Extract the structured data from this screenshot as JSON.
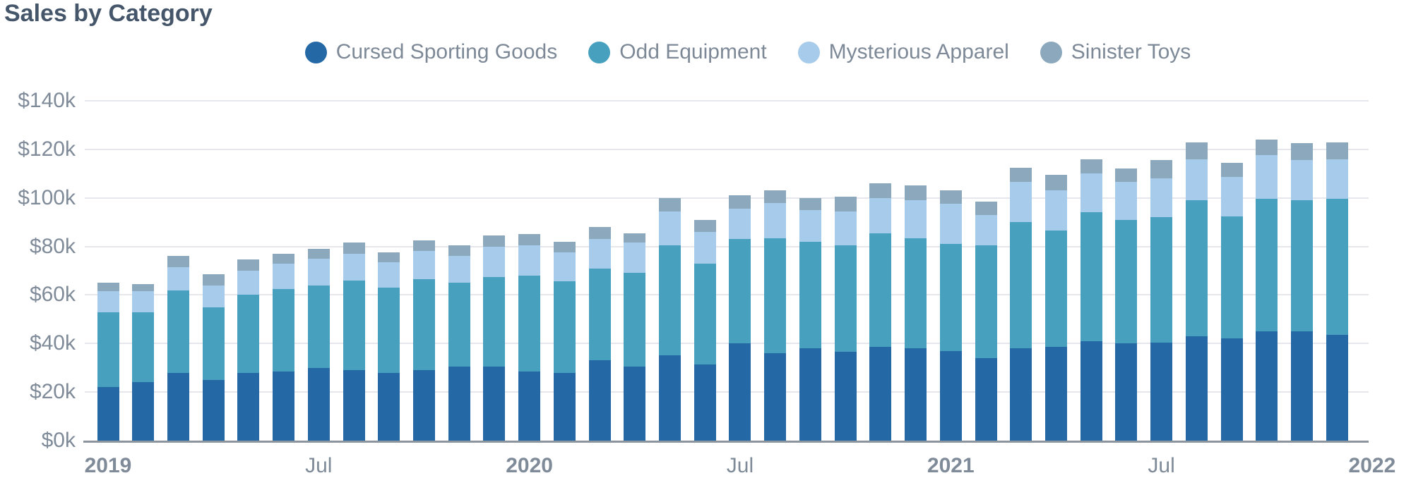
{
  "title": "Sales by Category",
  "colors": {
    "title_text": "#45566A",
    "legend_text": "#7D8997",
    "tick_text": "#7F8B99",
    "gridline": "#E5E7EC",
    "axis_line": "#8C949D",
    "background": "#FFFFFF"
  },
  "chart_data": {
    "type": "bar",
    "stacked": true,
    "title": "Sales by Category",
    "xlabel": "",
    "ylabel": "",
    "units": "USD thousands",
    "ylim": [
      0,
      140
    ],
    "grid": true,
    "legend_position": "top-center",
    "categories": [
      "Jan 2019",
      "Feb 2019",
      "Mar 2019",
      "Apr 2019",
      "May 2019",
      "Jun 2019",
      "Jul 2019",
      "Aug 2019",
      "Sep 2019",
      "Oct 2019",
      "Nov 2019",
      "Dec 2019",
      "Jan 2020",
      "Feb 2020",
      "Mar 2020",
      "Apr 2020",
      "May 2020",
      "Jun 2020",
      "Jul 2020",
      "Aug 2020",
      "Sep 2020",
      "Oct 2020",
      "Nov 2020",
      "Dec 2020",
      "Jan 2021",
      "Feb 2021",
      "Mar 2021",
      "Apr 2021",
      "May 2021",
      "Jun 2021",
      "Jul 2021",
      "Aug 2021",
      "Sep 2021",
      "Oct 2021",
      "Nov 2021",
      "Dec 2021"
    ],
    "series": [
      {
        "name": "Cursed Sporting Goods",
        "color": "#2568A6",
        "values": [
          22,
          24,
          28,
          25,
          28,
          28.5,
          30,
          29,
          28,
          29,
          30.5,
          30.5,
          28.5,
          28,
          33,
          30.5,
          35,
          31.5,
          40,
          36,
          38,
          36.5,
          38.5,
          38,
          37,
          34,
          38,
          38.5,
          41,
          40,
          40.5,
          43,
          42,
          45,
          45,
          43.5
        ]
      },
      {
        "name": "Odd Equipment",
        "color": "#47A1BE",
        "values": [
          31,
          29,
          34,
          30,
          32,
          34,
          34,
          37,
          35,
          37.5,
          34.5,
          37,
          39.5,
          37.5,
          38,
          38.5,
          45.5,
          41.5,
          43,
          47.5,
          44,
          44,
          47,
          45.5,
          44,
          46.5,
          52,
          48,
          53,
          51,
          51.5,
          56,
          50.5,
          54.5,
          54,
          56
        ]
      },
      {
        "name": "Mysterious Apparel",
        "color": "#A7CBEA",
        "values": [
          8.5,
          8.5,
          9.5,
          9,
          10,
          10.5,
          11,
          11,
          10.5,
          11.5,
          11,
          12.5,
          12.5,
          12,
          12,
          12.5,
          14,
          13,
          12.5,
          14.5,
          13,
          14,
          14.5,
          15.5,
          16.5,
          12.5,
          16.5,
          16.5,
          16,
          15.5,
          16,
          17,
          16,
          18,
          16.5,
          16.5
        ]
      },
      {
        "name": "Sinister Toys",
        "color": "#8CA8BC",
        "values": [
          3.5,
          3,
          4.5,
          4.5,
          4.5,
          4,
          4,
          4.5,
          4,
          4.5,
          4.5,
          4.5,
          4.5,
          4.5,
          5,
          4,
          5.5,
          5,
          5.5,
          5,
          5,
          6,
          6,
          6,
          5.5,
          5.5,
          6,
          6.5,
          6,
          5.5,
          7.5,
          7,
          6,
          6.5,
          7,
          7
        ]
      }
    ],
    "y_ticks": [
      {
        "label": "$0k",
        "value": 0
      },
      {
        "label": "$20k",
        "value": 20
      },
      {
        "label": "$40k",
        "value": 40
      },
      {
        "label": "$60k",
        "value": 60
      },
      {
        "label": "$80k",
        "value": 80
      },
      {
        "label": "$100k",
        "value": 100
      },
      {
        "label": "$120k",
        "value": 120
      },
      {
        "label": "$140k",
        "value": 140
      }
    ],
    "x_ticks": [
      {
        "label": "2019",
        "index": 0,
        "bold": true
      },
      {
        "label": "Jul",
        "index": 6,
        "bold": false
      },
      {
        "label": "2020",
        "index": 12,
        "bold": true
      },
      {
        "label": "Jul",
        "index": 18,
        "bold": false
      },
      {
        "label": "2021",
        "index": 24,
        "bold": true
      },
      {
        "label": "Jul",
        "index": 30,
        "bold": false
      },
      {
        "label": "2022",
        "index": 36,
        "bold": true
      }
    ]
  }
}
